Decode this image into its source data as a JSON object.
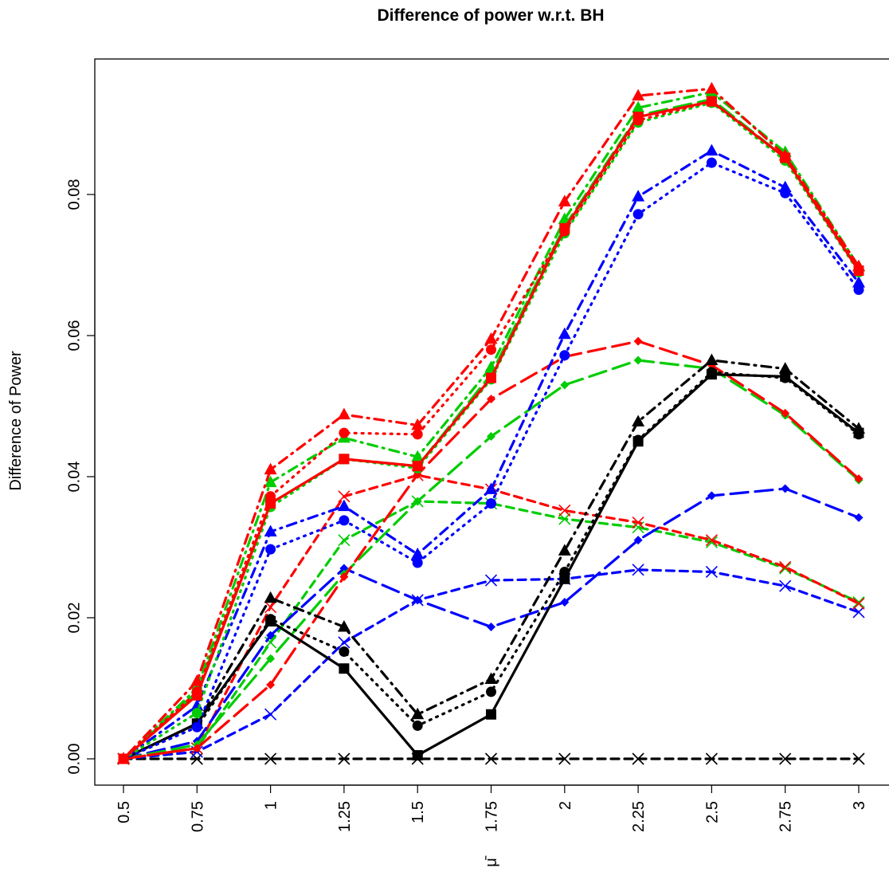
{
  "chart_data": {
    "type": "line",
    "title": "Difference of power w.r.t. BH",
    "xlabel": "μ̄",
    "ylabel": "Difference of Power",
    "categories": [
      "0.5",
      "0.75",
      "1",
      "1.25",
      "1.5",
      "1.75",
      "2",
      "2.25",
      "2.5",
      "2.75",
      "3"
    ],
    "x": [
      0.5,
      0.75,
      1,
      1.25,
      1.5,
      1.75,
      2,
      2.25,
      2.5,
      2.75,
      3
    ],
    "yticks": [
      "0.00",
      "0.02",
      "0.04",
      "0.06",
      "0.08"
    ],
    "ylim": [
      -0.004,
      0.097
    ],
    "grid": false,
    "legend": "none",
    "series": [
      {
        "color": "#000000",
        "marker": "x",
        "dash": "dashed",
        "values": [
          0,
          0,
          0,
          0,
          0,
          0,
          0,
          0,
          0,
          0,
          0
        ]
      },
      {
        "color": "#0000ff",
        "marker": "x",
        "dash": "dashed",
        "values": [
          0,
          0.001,
          0.0063,
          0.0165,
          0.0225,
          0.0253,
          0.0255,
          0.0268,
          0.0265,
          0.0245,
          0.0208
        ]
      },
      {
        "color": "#00cc00",
        "marker": "x",
        "dash": "dashed",
        "values": [
          0,
          0.0015,
          0.0165,
          0.031,
          0.0365,
          0.0362,
          0.034,
          0.0328,
          0.0307,
          0.027,
          0.0222
        ]
      },
      {
        "color": "#ff0000",
        "marker": "x",
        "dash": "dashed",
        "values": [
          0,
          0.0015,
          0.0215,
          0.0372,
          0.0402,
          0.0382,
          0.0352,
          0.0335,
          0.031,
          0.0272,
          0.022
        ]
      },
      {
        "color": "#0000ff",
        "marker": "diamond",
        "dash": "longdash",
        "values": [
          0,
          0.0025,
          0.0175,
          0.027,
          0.0225,
          0.0187,
          0.0222,
          0.031,
          0.0373,
          0.0383,
          0.0342
        ]
      },
      {
        "color": "#00cc00",
        "marker": "diamond",
        "dash": "longdash",
        "values": [
          0,
          0.002,
          0.0142,
          0.0262,
          0.0365,
          0.0457,
          0.053,
          0.0565,
          0.0553,
          0.0487,
          0.0395
        ]
      },
      {
        "color": "#ff0000",
        "marker": "diamond",
        "dash": "longdash",
        "values": [
          0,
          0.0015,
          0.0105,
          0.0258,
          0.0403,
          0.051,
          0.057,
          0.0592,
          0.0558,
          0.049,
          0.0397
        ]
      },
      {
        "color": "#000000",
        "marker": "square",
        "dash": "solid",
        "values": [
          0,
          0.005,
          0.0195,
          0.0128,
          0.0005,
          0.0063,
          0.0255,
          0.045,
          0.0545,
          0.0542,
          0.0462
        ]
      },
      {
        "color": "#000000",
        "marker": "circle",
        "dash": "dotted",
        "values": [
          0,
          0.0045,
          0.0198,
          0.0152,
          0.0047,
          0.0095,
          0.0265,
          0.0452,
          0.0548,
          0.054,
          0.046
        ]
      },
      {
        "color": "#000000",
        "marker": "triangle",
        "dash": "dotdash",
        "values": [
          0,
          0.005,
          0.0228,
          0.0187,
          0.0063,
          0.0113,
          0.0295,
          0.0478,
          0.0565,
          0.0553,
          0.0468
        ]
      },
      {
        "color": "#0000ff",
        "marker": "circle",
        "dash": "dotted",
        "values": [
          0,
          0.0045,
          0.0297,
          0.0338,
          0.0278,
          0.0362,
          0.0572,
          0.0772,
          0.0845,
          0.0802,
          0.0665
        ]
      },
      {
        "color": "#0000ff",
        "marker": "triangle",
        "dash": "dotdash",
        "values": [
          0,
          0.0075,
          0.0322,
          0.0358,
          0.029,
          0.0382,
          0.0602,
          0.0797,
          0.0862,
          0.081,
          0.0675
        ]
      },
      {
        "color": "#00cc00",
        "marker": "circle",
        "dash": "dotted",
        "values": [
          0,
          0.0065,
          0.0357,
          0.0425,
          0.0412,
          0.0538,
          0.0745,
          0.0902,
          0.093,
          0.0848,
          0.069
        ]
      },
      {
        "color": "#00cc00",
        "marker": "triangle",
        "dash": "dotdash",
        "values": [
          0,
          0.01,
          0.0392,
          0.0455,
          0.0428,
          0.0555,
          0.0765,
          0.0923,
          0.0945,
          0.086,
          0.0698
        ]
      },
      {
        "color": "#00cc00",
        "marker": "square",
        "dash": "longdash",
        "values": [
          0,
          0.0095,
          0.0362,
          0.0425,
          0.0415,
          0.0545,
          0.0755,
          0.0912,
          0.0935,
          0.0852,
          0.0692
        ]
      },
      {
        "color": "#ff0000",
        "marker": "circle",
        "dash": "dotted",
        "values": [
          0,
          0.0095,
          0.0372,
          0.0462,
          0.046,
          0.058,
          0.0748,
          0.0905,
          0.0932,
          0.0852,
          0.0692
        ]
      },
      {
        "color": "#ff0000",
        "marker": "triangle",
        "dash": "dotdash",
        "values": [
          0,
          0.011,
          0.041,
          0.0488,
          0.0473,
          0.0595,
          0.079,
          0.094,
          0.095,
          0.0855,
          0.0698
        ]
      },
      {
        "color": "#ff0000",
        "marker": "square",
        "dash": "solid",
        "values": [
          0,
          0.009,
          0.0362,
          0.0425,
          0.0415,
          0.054,
          0.0752,
          0.091,
          0.0932,
          0.0852,
          0.0692
        ]
      }
    ]
  }
}
